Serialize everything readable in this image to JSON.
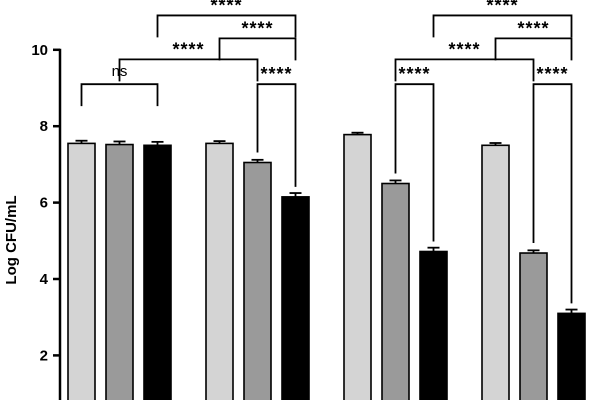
{
  "chart_data": {
    "type": "bar",
    "title": "",
    "xlabel": "",
    "ylabel": "Log CFU/mL",
    "ylim": [
      0,
      10
    ],
    "yticks": [
      2,
      4,
      6,
      8,
      10
    ],
    "grid": false,
    "legend": "none",
    "colors": [
      "#d4d4d4",
      "#9a9a9a",
      "#000000"
    ],
    "groups": [
      {
        "bars": [
          {
            "value": 7.55,
            "err": 0.07
          },
          {
            "value": 7.52,
            "err": 0.08
          },
          {
            "value": 7.5,
            "err": 0.09
          }
        ]
      },
      {
        "bars": [
          {
            "value": 7.55,
            "err": 0.06
          },
          {
            "value": 7.05,
            "err": 0.07
          },
          {
            "value": 6.15,
            "err": 0.1
          }
        ]
      },
      {
        "bars": [
          {
            "value": 7.78,
            "err": 0.05
          },
          {
            "value": 6.5,
            "err": 0.08
          },
          {
            "value": 4.72,
            "err": 0.1
          }
        ]
      },
      {
        "bars": [
          {
            "value": 7.5,
            "err": 0.06
          },
          {
            "value": 4.68,
            "err": 0.07
          },
          {
            "value": 3.1,
            "err": 0.1
          }
        ]
      }
    ],
    "comparisons": [
      {
        "label": "ns",
        "group": 0,
        "from": 0,
        "to": 2,
        "level": 9.1
      },
      {
        "label": "****",
        "group": 1,
        "from": 1,
        "to": 2,
        "level": 9.1
      },
      {
        "label": "****",
        "group": 1,
        "from": 0,
        "to": 2,
        "level": 10.3
      },
      {
        "label": "****",
        "group": 2,
        "from": 1,
        "to": 2,
        "level": 9.1
      },
      {
        "label": "****",
        "group": 3,
        "from": 1,
        "to": 2,
        "level": 9.1
      },
      {
        "label": "****",
        "group": 3,
        "from": 0,
        "to": 2,
        "level": 10.3
      },
      {
        "label": "****",
        "span": [
          0,
          1
        ],
        "from": 1,
        "to": 1,
        "level": 9.75
      },
      {
        "label": "****",
        "span": [
          0,
          1
        ],
        "from": 2,
        "to": 2,
        "level": 10.9
      },
      {
        "label": "****",
        "span": [
          2,
          3
        ],
        "from": 1,
        "to": 1,
        "level": 9.75
      },
      {
        "label": "****",
        "span": [
          2,
          3
        ],
        "from": 2,
        "to": 2,
        "level": 10.9
      }
    ]
  }
}
